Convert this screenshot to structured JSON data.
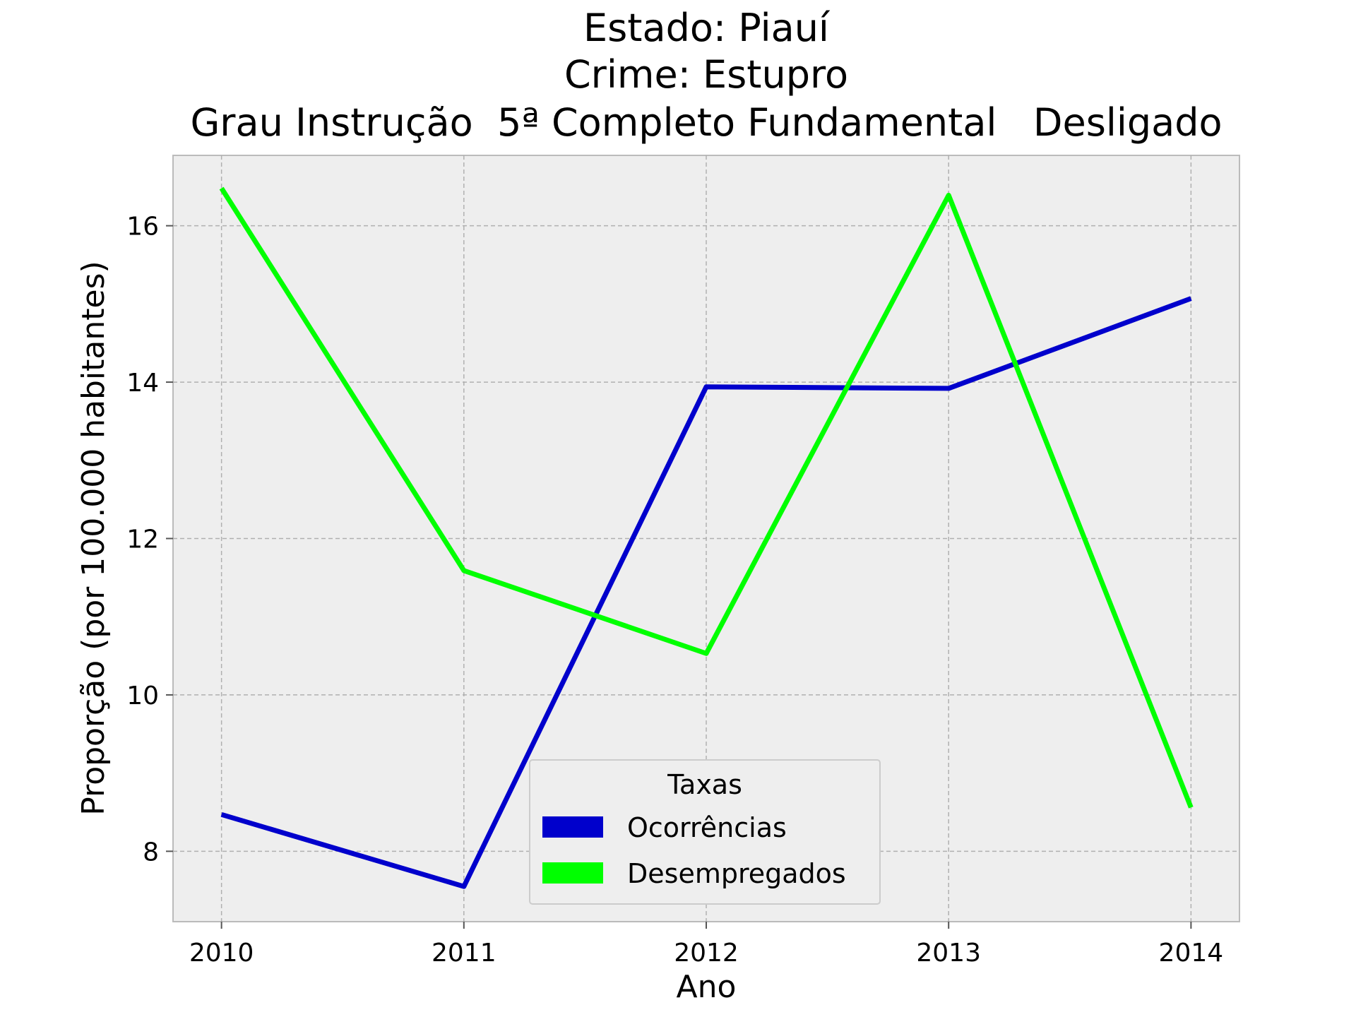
{
  "chart_data": {
    "type": "line",
    "title_lines": [
      "Estado: Piauí",
      "Crime: Estupro",
      "Grau Instrução  5ª Completo Fundamental   Desligado"
    ],
    "xlabel": "Ano",
    "ylabel": "Proporção (por 100.000 habitantes)",
    "x": [
      2010,
      2011,
      2012,
      2013,
      2014
    ],
    "x_tick_labels": [
      "2010",
      "2011",
      "2012",
      "2013",
      "2014"
    ],
    "y_ticks": [
      8,
      10,
      12,
      14,
      16
    ],
    "y_tick_labels": [
      "8",
      "10",
      "12",
      "14",
      "16"
    ],
    "xlim": [
      2009.8,
      2014.2
    ],
    "ylim": [
      7.1,
      16.9
    ],
    "grid": true,
    "legend": {
      "title": "Taxas",
      "placement": "lower-center"
    },
    "series": [
      {
        "name": "Ocorrências",
        "color": "#0000cc",
        "values": [
          8.47,
          7.55,
          13.94,
          13.92,
          15.07
        ]
      },
      {
        "name": "Desempregados",
        "color": "#00ff00",
        "values": [
          16.48,
          11.59,
          10.53,
          16.39,
          8.56
        ]
      }
    ]
  }
}
